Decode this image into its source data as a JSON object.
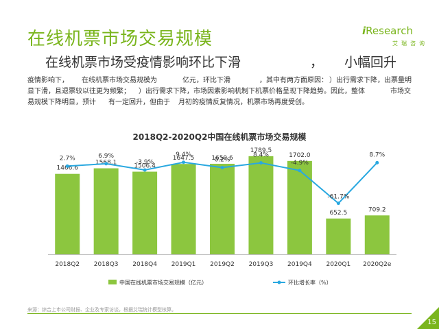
{
  "page": {
    "title": "在线机票市场交易规模",
    "subtitle_parts": [
      "在线机票市场受疫情影响环比下滑",
      "，",
      "小幅回升"
    ],
    "paragraph_lines": [
      [
        "疫情影响下，",
        "在线机票市场交易规模为",
        "亿元，环比下滑",
        "，其中有两方面原因：",
        "）出行需求下降，出票量明"
      ],
      [
        "显下滑，且退票较以往更为频繁；",
        "）出行需求下降，市场因素影响机制下机票价格呈现下降趋势。因此，整体",
        "市场交"
      ],
      [
        "易规模下降明显，预计",
        "有一定回升，但由于",
        "月初的疫情反复情况，机票市场再度受创。"
      ]
    ],
    "source": "来源：综合上市公司财报、企业及专家访谈，根据艾瑞统计模型核算。",
    "page_number": "15"
  },
  "logo": {
    "main": "Research",
    "sub": "艾瑞咨询"
  },
  "chart_data": {
    "type": "bar",
    "title": "2018Q2-2020Q2中国在线机票市场交易规模",
    "categories": [
      "2018Q2",
      "2018Q3",
      "2018Q4",
      "2019Q1",
      "2019Q2",
      "2019Q3",
      "2019Q4",
      "2020Q1",
      "2020Q2e"
    ],
    "series": [
      {
        "name": "中国在线机票市场交易规模（亿元）",
        "type": "bar",
        "values": [
          1466.6,
          1568.1,
          1506.4,
          1647.5,
          1650.6,
          1789.5,
          1702.0,
          652.5,
          709.2
        ],
        "labels": [
          "1466.6",
          "1568.1",
          "1506.4",
          "1647.5",
          "1650.6",
          "1789.5",
          "1702.0",
          "652.5",
          "709.2"
        ]
      },
      {
        "name": "环比增长率（%）",
        "type": "line",
        "values": [
          2.7,
          6.9,
          -3.9,
          9.4,
          0.2,
          8.4,
          -4.9,
          -61.7,
          8.7
        ],
        "labels": [
          "2.7%",
          "6.9%",
          "-3.9%",
          "9.4%",
          "0.2%",
          "8.4%",
          "-4.9%",
          "-61.7%",
          "8.7%"
        ]
      }
    ],
    "bar_ylim": [
      0,
      2000
    ],
    "line_ylim": [
      -150,
      40
    ],
    "legend_position": "bottom",
    "grid": false,
    "colors": {
      "bar": "#8cc63f",
      "line": "#29a8e0"
    }
  }
}
